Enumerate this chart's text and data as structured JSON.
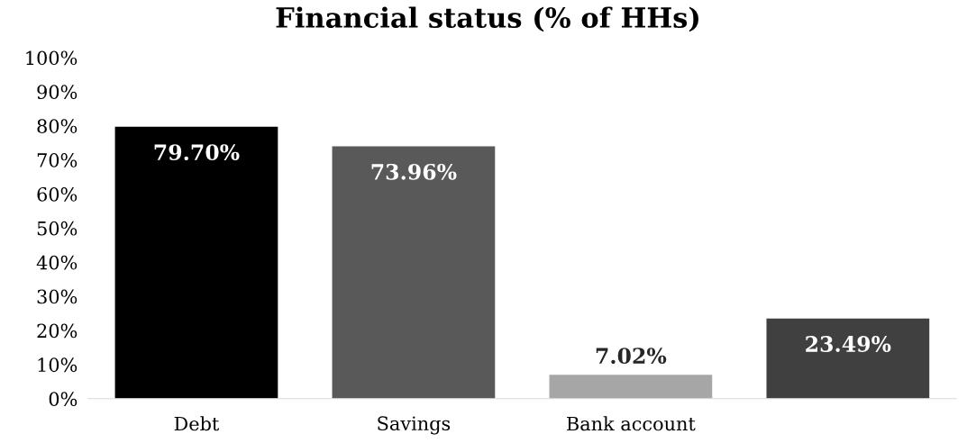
{
  "chart_data": {
    "type": "bar",
    "title": "Financial status (% of HHs)",
    "categories": [
      "Debt",
      "Savings",
      "Bank account",
      null
    ],
    "values": [
      79.7,
      73.96,
      7.02,
      23.49
    ],
    "colors": [
      "#000000",
      "#595959",
      "#a6a6a6",
      "#404040"
    ],
    "value_labels": [
      "79.70%",
      "73.96%",
      "7.02%",
      "23.49%"
    ],
    "ylim": [
      0,
      100
    ],
    "yticks": [
      {
        "value": 0,
        "label": "0%"
      },
      {
        "value": 10,
        "label": "10%"
      },
      {
        "value": 20,
        "label": "20%"
      },
      {
        "value": 30,
        "label": "30%"
      },
      {
        "value": 40,
        "label": "40%"
      },
      {
        "value": 50,
        "label": "50%"
      },
      {
        "value": 60,
        "label": "60%"
      },
      {
        "value": 70,
        "label": "70%"
      },
      {
        "value": 80,
        "label": "80%"
      },
      {
        "value": 90,
        "label": "90%"
      },
      {
        "value": 100,
        "label": "100%"
      }
    ],
    "grid": false,
    "legend": false
  }
}
